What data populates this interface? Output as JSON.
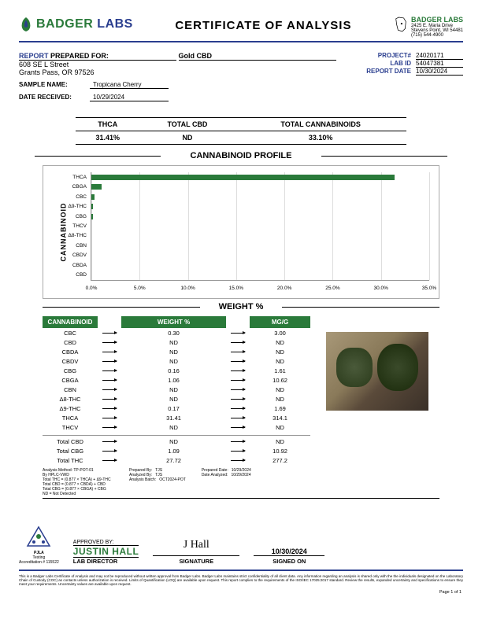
{
  "header": {
    "logo_left": {
      "brand1": "BADGER",
      "brand2": "LABS"
    },
    "coa_title": "CERTIFICATE OF ANALYSIS",
    "lab_right": {
      "title": "BADGER LABS",
      "addr1": "2425 E. Maria Drive",
      "addr2": "Stevens Point, WI 54481",
      "phone": "(715) 544-4900"
    }
  },
  "report_for": {
    "label": "REPORT",
    "suffix": "PREPARED FOR:",
    "client": "Gold CBD",
    "addr1": "608 SE L Street",
    "addr2": "Grants Pass, OR 97526"
  },
  "meta": {
    "project_label": "PROJECT#",
    "project": "24020171",
    "labid_label": "LAB ID",
    "labid": "54047381",
    "reportdate_label": "REPORT DATE",
    "reportdate": "10/30/2024"
  },
  "sample": {
    "name_label": "SAMPLE NAME:",
    "name": "Tropicana Cherry",
    "date_label": "DATE RECEIVED:",
    "date": "10/29/2024"
  },
  "key_vals": {
    "h1": "THCA",
    "h2": "TOTAL CBD",
    "h3": "TOTAL CANNABINOIDS",
    "v1": "31.41%",
    "v2": "ND",
    "v3": "33.10%"
  },
  "chart": {
    "title": "CANNABINOID PROFILE",
    "ylabel": "CANNABINOID",
    "xmax": 35.0,
    "xstep": 5.0,
    "bar_color": "#2a7a3a",
    "grid_color": "#dddddd",
    "bars": [
      {
        "label": "THCA",
        "value": 31.41
      },
      {
        "label": "CBGA",
        "value": 1.06
      },
      {
        "label": "CBC",
        "value": 0.3
      },
      {
        "label": "Δ9-THC",
        "value": 0.17
      },
      {
        "label": "CBG",
        "value": 0.16
      },
      {
        "label": "THCV",
        "value": 0
      },
      {
        "label": "Δ8-THC",
        "value": 0
      },
      {
        "label": "CBN",
        "value": 0
      },
      {
        "label": "CBDV",
        "value": 0
      },
      {
        "label": "CBDA",
        "value": 0
      },
      {
        "label": "CBD",
        "value": 0
      }
    ]
  },
  "weight_title": "WEIGHT %",
  "table": {
    "h1": "CANNABINOID",
    "h2": "WEIGHT %",
    "h3": "MG/G",
    "rows": [
      {
        "name": "CBC",
        "wt": "0.30",
        "mg": "3.00"
      },
      {
        "name": "CBD",
        "wt": "ND",
        "mg": "ND"
      },
      {
        "name": "CBDA",
        "wt": "ND",
        "mg": "ND"
      },
      {
        "name": "CBDV",
        "wt": "ND",
        "mg": "ND"
      },
      {
        "name": "CBG",
        "wt": "0.16",
        "mg": "1.61"
      },
      {
        "name": "CBGA",
        "wt": "1.06",
        "mg": "10.62"
      },
      {
        "name": "CBN",
        "wt": "ND",
        "mg": "ND"
      },
      {
        "name": "Δ8-THC",
        "wt": "ND",
        "mg": "ND"
      },
      {
        "name": "Δ9-THC",
        "wt": "0.17",
        "mg": "1.69"
      },
      {
        "name": "THCA",
        "wt": "31.41",
        "mg": "314.1"
      },
      {
        "name": "THCV",
        "wt": "ND",
        "mg": "ND"
      }
    ],
    "totals": [
      {
        "name": "Total CBD",
        "wt": "ND",
        "mg": "ND"
      },
      {
        "name": "Total CBG",
        "wt": "1.09",
        "mg": "10.92"
      },
      {
        "name": "Total THC",
        "wt": "27.72",
        "mg": "277.2"
      }
    ]
  },
  "fine": {
    "left": [
      "Analysis Method: TP-POT-01",
      "By HPLC-VWD",
      "Total THC = (0.877 × THCA) + Δ9-THC",
      "Total CBD = (0.877 × CBDA) + CBD",
      "Total CBG = (0.877 × CBGA) + CBG",
      "ND = Not Detected"
    ],
    "col1": {
      "l1": "Prepared By:",
      "v1": "TJS",
      "l2": "Analyzed By:",
      "v2": "TJS",
      "l3": "Analysis Batch:",
      "v3": "OCT2024-POT"
    },
    "col2": {
      "l1": "Prepared Date:",
      "v1": "10/29/2024",
      "l2": "Date Analyzed:",
      "v2": "10/29/2024"
    }
  },
  "footer": {
    "accred": {
      "line1": "PJLA",
      "line2": "Testing",
      "line3": "Accreditation # 115522"
    },
    "approved_by_label": "APPROVED BY:",
    "approved_name": "JUSTIN HALL",
    "approved_title": "LAB DIRECTOR",
    "signature_label": "SIGNATURE",
    "signed_on_label": "SIGNED ON",
    "signed_date": "10/30/2024",
    "page": "Page 1 of 1"
  },
  "disclaimer": "This is a Badger Labs Certificate of Analysis and may not be reproduced without written approval from Badger Labs. Badger Labs maintains strict confidentiality of all client data. Any information regarding an analysis is shared only with the the individuals designated on the Laboratory Chain of Custody (COC) as contacts unless authorization is received. Limits of Quantification (LOQ) are available upon request. This report complies to the requirements of the ISO/IEC 17025:2017 standard. Review the results, expanded uncertainty and specifications to ensure they meet your requirements. Uncertainty values are available upon request."
}
